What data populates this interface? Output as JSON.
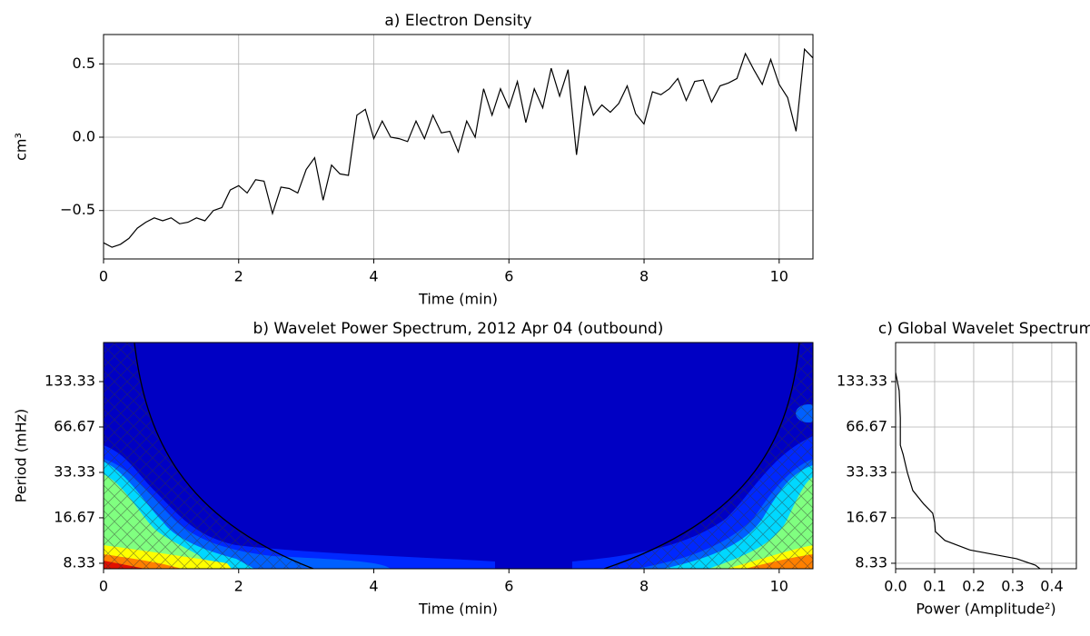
{
  "chart_data": [
    {
      "type": "line",
      "title": "a) Electron Density",
      "x_label": "Time (min)",
      "y_label": "cm³",
      "x": [
        0,
        0.125,
        0.25,
        0.375,
        0.5,
        0.625,
        0.75,
        0.875,
        1.0,
        1.125,
        1.25,
        1.375,
        1.5,
        1.625,
        1.75,
        1.875,
        2.0,
        2.125,
        2.25,
        2.375,
        2.5,
        2.625,
        2.75,
        2.875,
        3.0,
        3.125,
        3.25,
        3.375,
        3.5,
        3.625,
        3.75,
        3.875,
        4.0,
        4.125,
        4.25,
        4.375,
        4.5,
        4.625,
        4.75,
        4.875,
        5.0,
        5.125,
        5.25,
        5.375,
        5.5,
        5.625,
        5.75,
        5.875,
        6.0,
        6.125,
        6.25,
        6.375,
        6.5,
        6.625,
        6.75,
        6.875,
        7.0,
        7.125,
        7.25,
        7.375,
        7.5,
        7.625,
        7.75,
        7.875,
        8.0,
        8.125,
        8.25,
        8.375,
        8.5,
        8.625,
        8.75,
        8.875,
        9.0,
        9.125,
        9.25,
        9.375,
        9.5,
        9.625,
        9.75,
        9.875,
        10.0,
        10.125,
        10.25,
        10.375,
        10.5
      ],
      "values": [
        -0.72,
        -0.75,
        -0.73,
        -0.69,
        -0.62,
        -0.58,
        -0.55,
        -0.57,
        -0.55,
        -0.59,
        -0.58,
        -0.55,
        -0.57,
        -0.5,
        -0.48,
        -0.36,
        -0.33,
        -0.38,
        -0.29,
        -0.3,
        -0.52,
        -0.34,
        -0.35,
        -0.38,
        -0.22,
        -0.14,
        -0.43,
        -0.19,
        -0.25,
        -0.26,
        0.15,
        0.19,
        -0.01,
        0.11,
        0.0,
        -0.01,
        -0.03,
        0.11,
        -0.01,
        0.15,
        0.03,
        0.04,
        -0.1,
        0.11,
        0.0,
        0.33,
        0.15,
        0.33,
        0.2,
        0.38,
        0.1,
        0.33,
        0.2,
        0.47,
        0.28,
        0.46,
        -0.12,
        0.35,
        0.15,
        0.22,
        0.17,
        0.23,
        0.35,
        0.16,
        0.09,
        0.31,
        0.29,
        0.33,
        0.4,
        0.25,
        0.38,
        0.39,
        0.24,
        0.35,
        0.37,
        0.4,
        0.57,
        0.46,
        0.36,
        0.53,
        0.36,
        0.27,
        0.04,
        0.6,
        0.54
      ],
      "color": "#000000",
      "xlim": [
        0,
        10.5
      ],
      "xticks": [
        0,
        2,
        4,
        6,
        8,
        10
      ],
      "ylim": [
        -0.83,
        0.7
      ],
      "yticks": [
        {
          "value": -0.5,
          "label": "−0.5"
        },
        {
          "value": 0,
          "label": "0.0"
        },
        0.5
      ],
      "grid": true
    },
    {
      "type": "contour",
      "title": "b) Wavelet Power Spectrum, 2012 Apr 04 (outbound)",
      "x_label": "Time (min)",
      "y_label": "Period (mHz)",
      "xlim": [
        0,
        10.5
      ],
      "xticks": [
        0,
        2,
        4,
        6,
        8,
        10
      ],
      "ylim": [
        7.66,
        242
      ],
      "ylog": true,
      "yticks": [
        8.33,
        16.67,
        33.33,
        66.67,
        133.33
      ],
      "grid": false
    },
    {
      "type": "line",
      "title": "c) Global Wavelet Spectrum",
      "x_label": "Power (Amplitude²)",
      "x": [
        0.0,
        0.009,
        0.012,
        0.012,
        0.019,
        0.03,
        0.044,
        0.072,
        0.095,
        0.1,
        0.102,
        0.126,
        0.19,
        0.31,
        0.358,
        0.37
      ],
      "values": [
        153,
        116,
        76.6,
        50.5,
        44,
        33.33,
        25.3,
        20.6,
        17.9,
        15.5,
        13.5,
        11.8,
        10.2,
        8.93,
        8.1,
        7.66
      ],
      "color": "#000000",
      "xlim": [
        0,
        0.463
      ],
      "xticks": [
        {
          "value": 0,
          "label": "0.0"
        },
        0.1,
        0.2,
        0.3,
        0.4
      ],
      "ylim": [
        7.66,
        242
      ],
      "ylog": true,
      "yticks": [
        8.33,
        16.67,
        33.33,
        66.67,
        133.33
      ],
      "grid": true
    }
  ]
}
